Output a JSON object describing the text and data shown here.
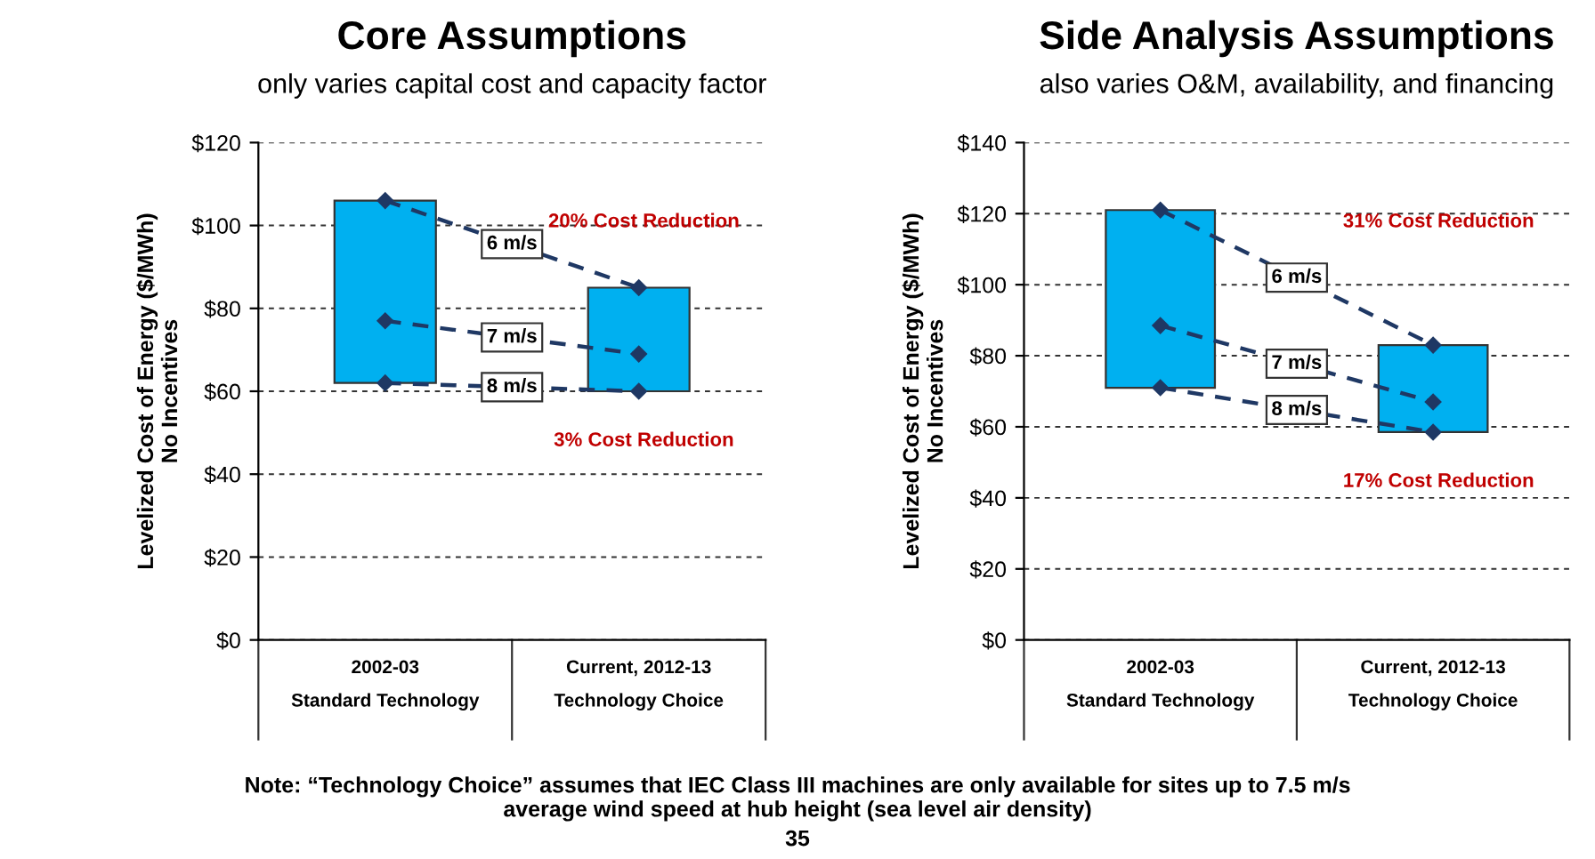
{
  "chart_data": [
    {
      "type": "bar",
      "title": "Core Assumptions",
      "subtitle": "only varies capital cost and capacity factor",
      "ylabel": "Levelized Cost of Energy ($/MWh)\nNo Incentives",
      "categories": [
        "2002-03\nStandard Technology",
        "Current, 2012-13\nTechnology Choice"
      ],
      "base": [
        62,
        60
      ],
      "values": [
        44,
        25
      ],
      "color": "#00b0f0",
      "ylim": [
        0,
        120
      ],
      "yticks": [
        {
          "value": 0,
          "label": "$0"
        },
        {
          "value": 20,
          "label": "$20"
        },
        {
          "value": 40,
          "label": "$40"
        },
        {
          "value": 60,
          "label": "$60"
        },
        {
          "value": 80,
          "label": "$80"
        },
        {
          "value": 100,
          "label": "$100"
        },
        {
          "value": 120,
          "label": "$120"
        }
      ],
      "grid": "y",
      "series": [
        {
          "type": "line",
          "name": "6 m/s",
          "color": "#1f3864",
          "values": [
            106,
            85
          ],
          "marker": "diamond",
          "line_style": "dashed"
        },
        {
          "type": "line",
          "name": "7 m/s",
          "color": "#1f3864",
          "values": [
            77,
            69
          ],
          "marker": "diamond",
          "line_style": "dashed"
        },
        {
          "type": "line",
          "name": "8 m/s",
          "color": "#1f3864",
          "values": [
            62,
            60
          ],
          "marker": "diamond",
          "line_style": "dashed"
        }
      ],
      "annotations": [
        "20% Cost Reduction",
        "3% Cost Reduction",
        "Note: “Technology Choice” assumes that IEC Class III machines are only available for sites up to 7.5 m/s\naverage wind speed at hub height (sea level air density)",
        "35"
      ]
    },
    {
      "type": "bar",
      "title": "Side Analysis Assumptions",
      "subtitle": "also varies O&M, availability, and financing",
      "ylabel": "Levelized Cost of Energy ($/MWh)\nNo Incentives",
      "categories": [
        "2002-03\nStandard Technology",
        "Current, 2012-13\nTechnology Choice"
      ],
      "base": [
        71,
        58.5
      ],
      "values": [
        50,
        24.5
      ],
      "color": "#00b0f0",
      "ylim": [
        0,
        140
      ],
      "yticks": [
        {
          "value": 0,
          "label": "$0"
        },
        {
          "value": 20,
          "label": "$20"
        },
        {
          "value": 40,
          "label": "$40"
        },
        {
          "value": 60,
          "label": "$60"
        },
        {
          "value": 80,
          "label": "$80"
        },
        {
          "value": 100,
          "label": "$100"
        },
        {
          "value": 120,
          "label": "$120"
        },
        {
          "value": 140,
          "label": "$140"
        }
      ],
      "grid": "y",
      "series": [
        {
          "type": "line",
          "name": "6 m/s",
          "color": "#1f3864",
          "values": [
            121,
            83
          ],
          "marker": "diamond",
          "line_style": "dashed"
        },
        {
          "type": "line",
          "name": "7 m/s",
          "color": "#1f3864",
          "values": [
            88.5,
            67
          ],
          "marker": "diamond",
          "line_style": "dashed"
        },
        {
          "type": "line",
          "name": "8 m/s",
          "color": "#1f3864",
          "values": [
            71,
            58.5
          ],
          "marker": "diamond",
          "line_style": "dashed"
        }
      ],
      "annotations": [
        "31% Cost Reduction",
        "17% Cost Reduction"
      ]
    }
  ]
}
